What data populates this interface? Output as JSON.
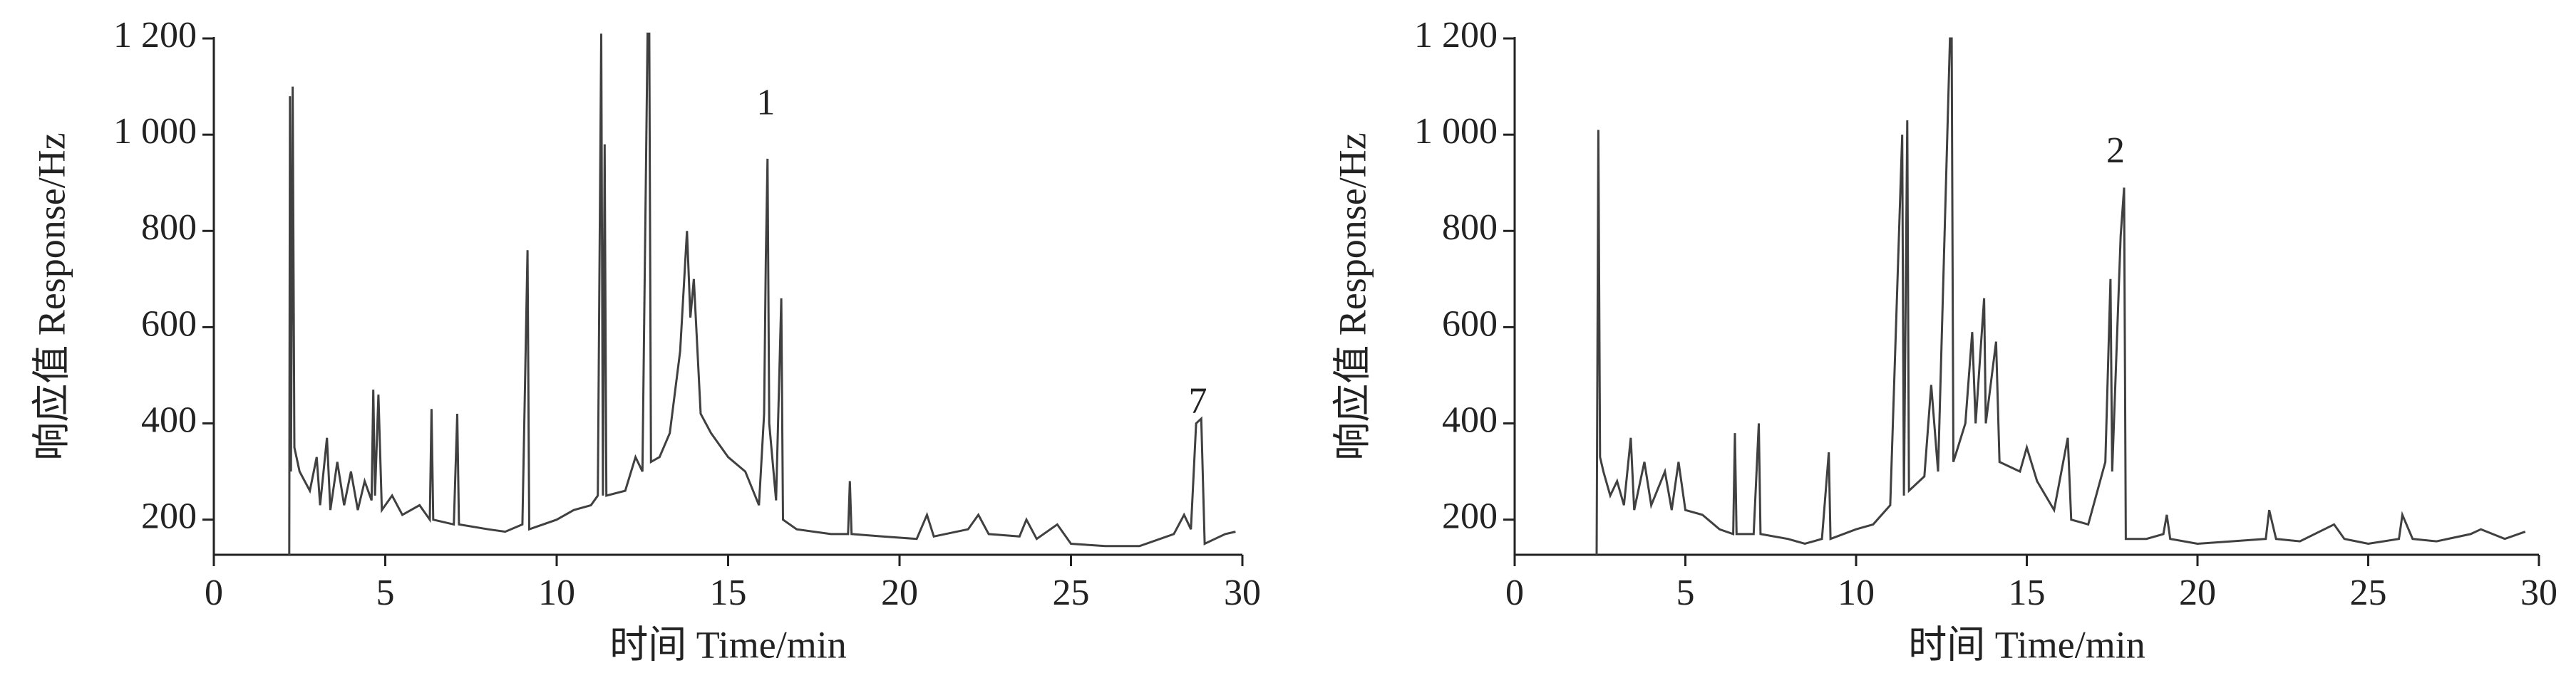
{
  "chart_data": [
    {
      "type": "line",
      "xlabel": "时间  Time/min",
      "ylabel": "响应值  Response/Hz",
      "xlim": [
        0,
        30
      ],
      "ylim": [
        127,
        1200
      ],
      "xticks": [
        0,
        5,
        10,
        15,
        20,
        25,
        30
      ],
      "yticks": [
        200,
        400,
        600,
        800,
        {
          "value": 1000,
          "label": "1 000"
        },
        {
          "value": 1200,
          "label": "1 200"
        }
      ],
      "x": [
        2.2,
        2.22,
        2.25,
        2.3,
        2.35,
        2.5,
        2.8,
        3.0,
        3.1,
        3.3,
        3.4,
        3.6,
        3.8,
        4.0,
        4.2,
        4.4,
        4.6,
        4.65,
        4.7,
        4.8,
        4.9,
        5.2,
        5.5,
        6.0,
        6.3,
        6.35,
        6.4,
        7.0,
        7.1,
        7.15,
        8.0,
        8.5,
        9.0,
        9.15,
        9.2,
        10.0,
        10.5,
        11.0,
        11.2,
        11.3,
        11.35,
        11.4,
        11.45,
        12.0,
        12.3,
        12.5,
        12.65,
        12.7,
        12.75,
        13.0,
        13.3,
        13.6,
        13.8,
        13.9,
        14.0,
        14.2,
        14.5,
        15.0,
        15.5,
        15.9,
        16.05,
        16.1,
        16.15,
        16.2,
        16.4,
        16.55,
        16.6,
        17.0,
        18.0,
        18.5,
        18.55,
        18.6,
        19.5,
        20.5,
        20.8,
        21.0,
        22.0,
        22.3,
        22.6,
        23.5,
        23.7,
        24.0,
        24.6,
        25.0,
        26.0,
        27.0,
        28.0,
        28.3,
        28.5,
        28.65,
        28.8,
        28.9,
        29.2,
        29.5,
        29.8
      ],
      "series": [
        {
          "color": "#404040",
          "values": [
            127,
            1080,
            300,
            1100,
            350,
            300,
            260,
            330,
            230,
            370,
            220,
            320,
            230,
            300,
            220,
            280,
            240,
            470,
            250,
            460,
            220,
            250,
            210,
            230,
            200,
            430,
            200,
            190,
            420,
            190,
            180,
            175,
            190,
            760,
            180,
            200,
            220,
            230,
            250,
            1210,
            250,
            980,
            250,
            260,
            330,
            300,
            1210,
            1210,
            320,
            330,
            380,
            550,
            800,
            620,
            700,
            420,
            380,
            330,
            300,
            230,
            420,
            740,
            950,
            400,
            240,
            660,
            200,
            180,
            170,
            170,
            280,
            170,
            165,
            160,
            210,
            165,
            180,
            210,
            170,
            165,
            200,
            160,
            190,
            150,
            145,
            145,
            170,
            210,
            180,
            400,
            410,
            150,
            160,
            170,
            175
          ]
        }
      ],
      "annotations": [
        {
          "text": "1",
          "x": 16.1,
          "y": 1060
        },
        {
          "text": "7",
          "x": 28.7,
          "y": 440
        }
      ]
    },
    {
      "type": "line",
      "xlabel": "时间  Time/min",
      "ylabel": "响应值  Response/Hz",
      "xlim": [
        0,
        30
      ],
      "ylim": [
        127,
        1200
      ],
      "xticks": [
        0,
        5,
        10,
        15,
        20,
        25,
        30
      ],
      "yticks": [
        200,
        400,
        600,
        800,
        {
          "value": 1000,
          "label": "1 000"
        },
        {
          "value": 1200,
          "label": "1 200"
        }
      ],
      "x": [
        2.4,
        2.45,
        2.5,
        2.6,
        2.8,
        3.0,
        3.2,
        3.4,
        3.5,
        3.8,
        4.0,
        4.4,
        4.6,
        4.8,
        5.0,
        5.5,
        6.0,
        6.4,
        6.45,
        6.5,
        7.0,
        7.15,
        7.2,
        8.0,
        8.5,
        9.0,
        9.2,
        9.25,
        10.0,
        10.5,
        11.0,
        11.35,
        11.4,
        11.5,
        11.55,
        12.0,
        12.2,
        12.4,
        12.75,
        12.8,
        12.85,
        13.2,
        13.4,
        13.5,
        13.75,
        13.8,
        14.1,
        14.2,
        14.8,
        15.0,
        15.3,
        15.8,
        16.2,
        16.3,
        16.8,
        17.3,
        17.45,
        17.5,
        17.75,
        17.85,
        17.9,
        18.5,
        19.0,
        19.1,
        19.2,
        20.0,
        21.0,
        22.0,
        22.1,
        22.3,
        23.0,
        24.0,
        24.3,
        25.0,
        25.9,
        26.0,
        26.3,
        27.0,
        28.0,
        28.3,
        29.0,
        29.6
      ],
      "series": [
        {
          "color": "#404040",
          "values": [
            127,
            1010,
            330,
            300,
            250,
            280,
            230,
            370,
            220,
            320,
            230,
            300,
            220,
            320,
            220,
            210,
            180,
            170,
            380,
            170,
            170,
            400,
            170,
            160,
            150,
            160,
            340,
            160,
            180,
            190,
            230,
            1000,
            250,
            1030,
            260,
            290,
            480,
            300,
            1200,
            1200,
            320,
            400,
            590,
            400,
            660,
            400,
            570,
            320,
            300,
            350,
            280,
            220,
            370,
            200,
            190,
            320,
            700,
            300,
            790,
            890,
            160,
            160,
            170,
            210,
            160,
            150,
            155,
            160,
            220,
            160,
            155,
            190,
            160,
            150,
            160,
            210,
            160,
            155,
            170,
            180,
            160,
            175
          ]
        }
      ],
      "annotations": [
        {
          "text": "2",
          "x": 17.6,
          "y": 960
        }
      ]
    }
  ]
}
